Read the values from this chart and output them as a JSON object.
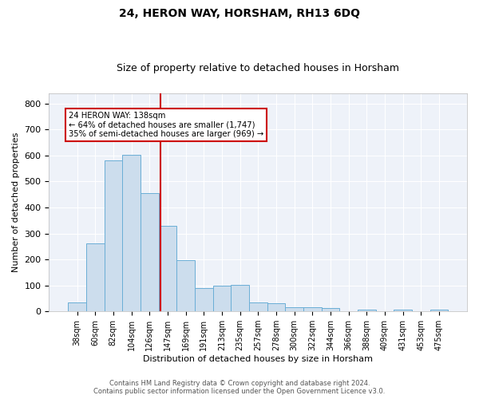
{
  "title": "24, HERON WAY, HORSHAM, RH13 6DQ",
  "subtitle": "Size of property relative to detached houses in Horsham",
  "xlabel": "Distribution of detached houses by size in Horsham",
  "ylabel": "Number of detached properties",
  "footer_line1": "Contains HM Land Registry data © Crown copyright and database right 2024.",
  "footer_line2": "Contains public sector information licensed under the Open Government Licence v3.0.",
  "annotation_line1": "24 HERON WAY: 138sqm",
  "annotation_line2": "← 64% of detached houses are smaller (1,747)",
  "annotation_line3": "35% of semi-detached houses are larger (969) →",
  "bar_color": "#ccdded",
  "bar_edge_color": "#6aaed6",
  "background_color": "#eef2f9",
  "grid_color": "#ffffff",
  "vline_color": "#cc0000",
  "annotation_box_edgecolor": "#cc0000",
  "categories": [
    "38sqm",
    "60sqm",
    "82sqm",
    "104sqm",
    "126sqm",
    "147sqm",
    "169sqm",
    "191sqm",
    "213sqm",
    "235sqm",
    "257sqm",
    "278sqm",
    "300sqm",
    "322sqm",
    "344sqm",
    "366sqm",
    "388sqm",
    "409sqm",
    "431sqm",
    "453sqm",
    "475sqm"
  ],
  "values": [
    35,
    262,
    582,
    602,
    455,
    328,
    196,
    90,
    100,
    103,
    35,
    32,
    17,
    17,
    12,
    0,
    6,
    0,
    8,
    0,
    6
  ],
  "vline_position": 4.62,
  "ylim": [
    0,
    840
  ],
  "yticks": [
    0,
    100,
    200,
    300,
    400,
    500,
    600,
    700,
    800
  ],
  "title_fontsize": 10,
  "subtitle_fontsize": 9,
  "ylabel_fontsize": 8,
  "xlabel_fontsize": 8,
  "tick_fontsize": 7,
  "footer_fontsize": 6
}
